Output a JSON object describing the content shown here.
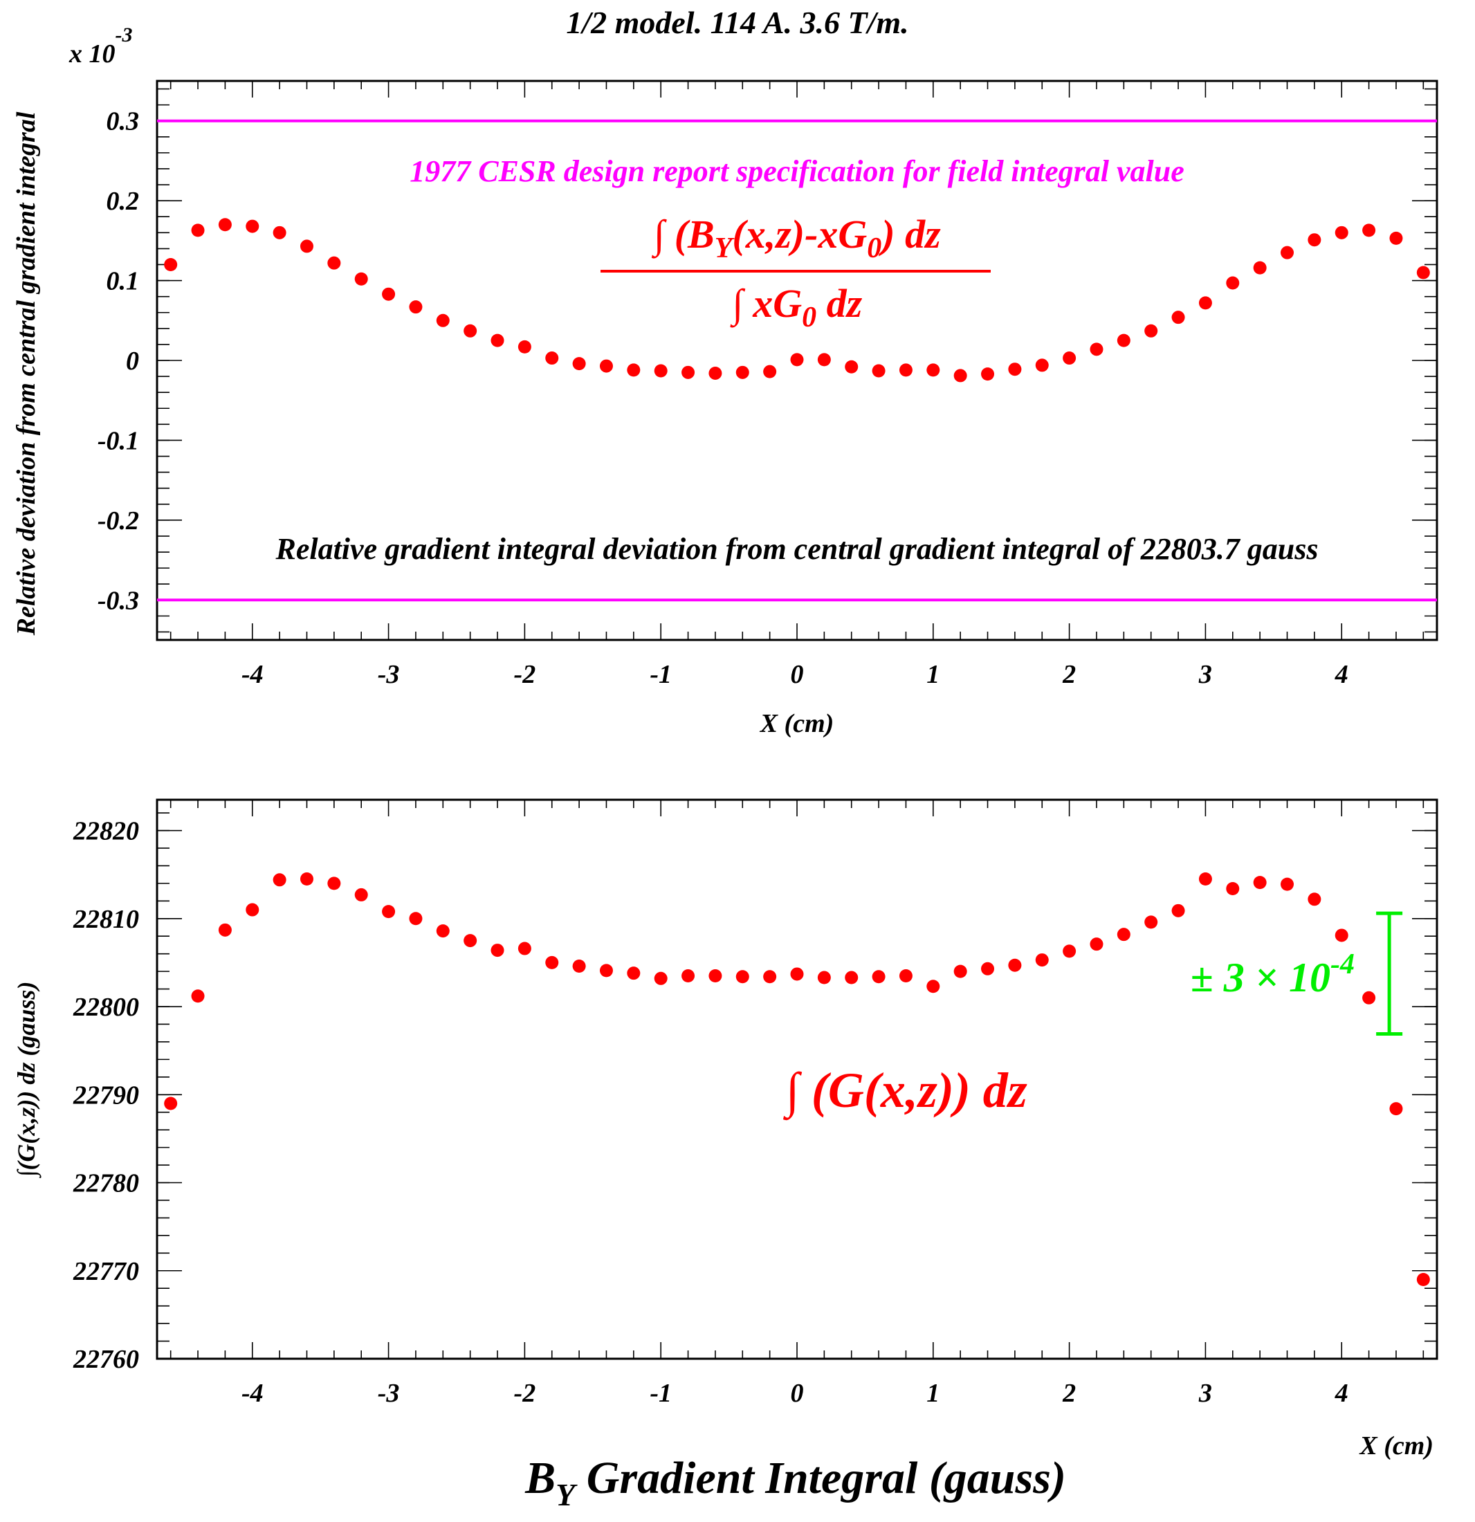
{
  "figure": {
    "title": "1/2 model. 114 A. 3.6 T/m.",
    "bottom_caption_main": "B",
    "bottom_caption_sub": "Y",
    "bottom_caption_rest": " Gradient Integral (gauss)"
  },
  "top_panel": {
    "ylabel": "Relative deviation from central gradient integral",
    "xlabel": "X (cm)",
    "exponent_prefix": "x 10",
    "exponent_power": "-3",
    "spec_annotation": "1977 CESR design report specification for field integral value",
    "deviation_annotation": "Relative gradient integral deviation from central gradient integral  of 22803.7 gauss",
    "formula": {
      "num_integral": "∫",
      "num_open": " (B",
      "num_sub_y": "Y",
      "num_mid": "(x,z)-xG",
      "num_sub_0": "0",
      "num_close": ") dz",
      "den_integral": "∫",
      "den_text": " xG",
      "den_sub_0": "0",
      "den_close": " dz"
    },
    "colors": {
      "points": "#ff0000",
      "spec_lines": "#ff00ff",
      "annotation_spec": "#ff00ff",
      "formula": "#ff0000"
    }
  },
  "bottom_panel": {
    "ylabel": "∫(G(x,z)) dz (gauss)",
    "xlabel": "X (cm)",
    "formula": "∫ (G(x,z)) dz",
    "error_bar_label_pm": "±",
    "error_bar_label_main": " 3 × 10",
    "error_bar_label_exp": "-4",
    "colors": {
      "points": "#ff0000",
      "error_bar": "#00ee00"
    }
  },
  "chart_data": [
    {
      "type": "scatter",
      "title": "1/2 model. 114 A. 3.6 T/m.",
      "xlabel": "X (cm)",
      "ylabel": "Relative deviation from central gradient integral",
      "y_multiplier": "x 10^-3",
      "xlim": [
        -4.7,
        4.7
      ],
      "ylim": [
        -0.35,
        0.35
      ],
      "x_ticks": [
        -4,
        -3,
        -2,
        -1,
        0,
        1,
        2,
        3,
        4
      ],
      "y_ticks": [
        -0.3,
        -0.2,
        -0.1,
        0,
        0.1,
        0.2,
        0.3
      ],
      "y_tick_labels": [
        "-0.3",
        "-0.2",
        "-0.1",
        "0",
        "0.1",
        "0.2",
        "0.3"
      ],
      "reference_lines": [
        0.3,
        -0.3
      ],
      "series": [
        {
          "x": [
            -4.6,
            -4.4,
            -4.2,
            -4.0,
            -3.8,
            -3.6,
            -3.4,
            -3.2,
            -3.0,
            -2.8,
            -2.6,
            -2.4,
            -2.2,
            -2.0,
            -1.8,
            -1.6,
            -1.4,
            -1.2,
            -1.0,
            -0.8,
            -0.6,
            -0.4,
            -0.2,
            0.0,
            0.2,
            0.4,
            0.6,
            0.8,
            1.0,
            1.2,
            1.4,
            1.6,
            1.8,
            2.0,
            2.2,
            2.4,
            2.6,
            2.8,
            3.0,
            3.2,
            3.4,
            3.6,
            3.8,
            4.0,
            4.2,
            4.4,
            4.6
          ],
          "y": [
            0.12,
            0.163,
            0.17,
            0.168,
            0.16,
            0.143,
            0.122,
            0.102,
            0.083,
            0.067,
            0.05,
            0.037,
            0.025,
            0.017,
            0.003,
            -0.004,
            -0.007,
            -0.012,
            -0.013,
            -0.015,
            -0.016,
            -0.015,
            -0.014,
            0.001,
            0.001,
            -0.008,
            -0.013,
            -0.012,
            -0.012,
            -0.019,
            -0.017,
            -0.011,
            -0.006,
            0.003,
            0.014,
            0.025,
            0.037,
            0.054,
            0.072,
            0.097,
            0.116,
            0.135,
            0.151,
            0.16,
            0.163,
            0.153,
            0.11
          ]
        }
      ]
    },
    {
      "type": "scatter",
      "title": "B_Y Gradient Integral (gauss)",
      "xlabel": "X (cm)",
      "ylabel": "∫(G(x,z)) dz (gauss)",
      "xlim": [
        -4.7,
        4.7
      ],
      "ylim": [
        22760,
        22823.5
      ],
      "x_ticks": [
        -4,
        -3,
        -2,
        -1,
        0,
        1,
        2,
        3,
        4
      ],
      "y_ticks": [
        22760,
        22770,
        22780,
        22790,
        22800,
        22810,
        22820
      ],
      "error_bar": {
        "label": "± 3 × 10^-4",
        "x": 4.35,
        "y_low": 22796.9,
        "y_high": 22810.6
      },
      "series": [
        {
          "x": [
            -4.6,
            -4.4,
            -4.2,
            -4.0,
            -3.8,
            -3.6,
            -3.4,
            -3.2,
            -3.0,
            -2.8,
            -2.6,
            -2.4,
            -2.2,
            -2.0,
            -1.8,
            -1.6,
            -1.4,
            -1.2,
            -1.0,
            -0.8,
            -0.6,
            -0.4,
            -0.2,
            0.0,
            0.2,
            0.4,
            0.6,
            0.8,
            1.0,
            1.2,
            1.4,
            1.6,
            1.8,
            2.0,
            2.2,
            2.4,
            2.6,
            2.8,
            3.0,
            3.2,
            3.4,
            3.6,
            3.8,
            4.0,
            4.2,
            4.4,
            4.6
          ],
          "y": [
            22789.0,
            22801.2,
            22808.7,
            22811.0,
            22814.4,
            22814.5,
            22814.0,
            22812.7,
            22810.8,
            22810.0,
            22808.6,
            22807.5,
            22806.4,
            22806.6,
            22805.0,
            22804.6,
            22804.1,
            22803.8,
            22803.2,
            22803.5,
            22803.5,
            22803.4,
            22803.4,
            22803.7,
            22803.3,
            22803.3,
            22803.4,
            22803.5,
            22802.3,
            22804.0,
            22804.3,
            22804.7,
            22805.3,
            22806.3,
            22807.1,
            22808.2,
            22809.6,
            22810.9,
            22814.5,
            22813.4,
            22814.1,
            22813.9,
            22812.2,
            22808.1,
            22801.0,
            22788.4,
            22769.0
          ]
        }
      ]
    }
  ]
}
